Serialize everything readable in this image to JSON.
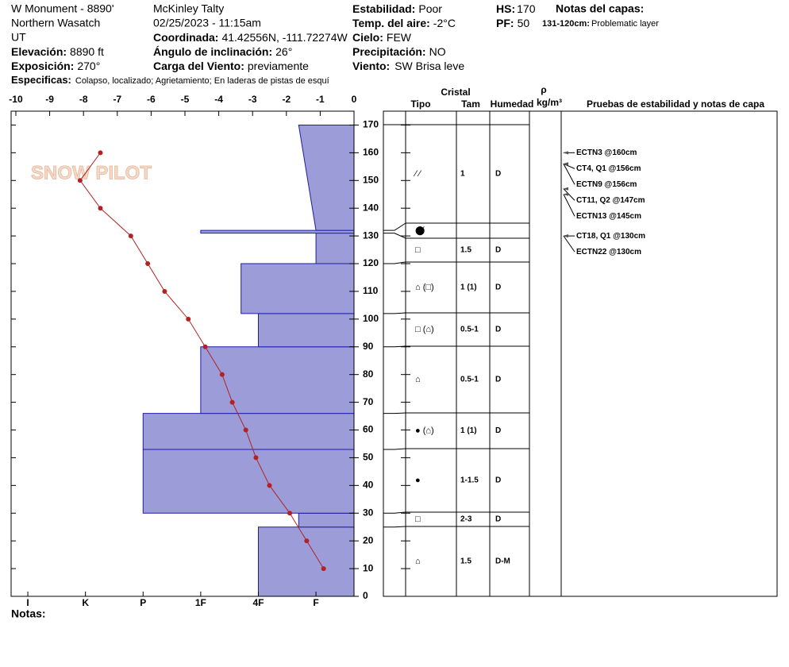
{
  "header": {
    "site": "W Monument - 8890'",
    "range": "Northern Wasatch",
    "state": "UT",
    "elevation": {
      "label": "Elevación:",
      "value": "8890 ft"
    },
    "aspect": {
      "label": "Exposición:",
      "value": "270°"
    },
    "observer": "McKinley Talty",
    "datetime": "02/25/2023 - 11:15am",
    "coordinates": {
      "label": "Coordinada:",
      "value": "41.42556N, -111.72274W"
    },
    "slope": {
      "label": "Ángulo de inclinación:",
      "value": "26°"
    },
    "wind_loading": {
      "label": "Carga del Viento:",
      "value": "previamente"
    },
    "stability": {
      "label": "Estabilidad:",
      "value": "Poor"
    },
    "air_temp": {
      "label": "Temp. del aire:",
      "value": "-2°C"
    },
    "sky": {
      "label": "Cielo:",
      "value": "FEW"
    },
    "precipitation": {
      "label": "Precipitación:",
      "value": "NO"
    },
    "wind": {
      "label": "Viento:",
      "value": "SW Brisa leve"
    },
    "hs": {
      "label": "HS:",
      "value": "170"
    },
    "pf": {
      "label": "PF:",
      "value": "50"
    },
    "layer_notes_title": "Notas del capas:",
    "layer_note": {
      "label": "131-120cm:",
      "value": "Problematic layer"
    },
    "specifics": {
      "label": "Especificas:",
      "value": "Colapso, localizado;  Agrietamiento;  En laderas de pistas de esquí"
    },
    "notes": "Notas:",
    "logo": "SNOW PILOT"
  },
  "chart_data": [
    {
      "type": "line",
      "color": "#b22222",
      "depths": [
        160,
        150,
        140,
        130,
        120,
        110,
        100,
        90,
        80,
        70,
        60,
        50,
        40,
        30,
        20,
        10
      ],
      "values": [
        -7.5,
        -8.1,
        -7.5,
        -6.6,
        -6.1,
        -5.6,
        -4.9,
        -4.4,
        -3.9,
        -3.6,
        -3.2,
        -2.9,
        -2.5,
        -1.9,
        -1.4,
        -0.9
      ],
      "xlim": [
        -10.14,
        0
      ],
      "xticks": [
        -10,
        -9,
        -8,
        -7,
        -6,
        -5,
        -4,
        -3,
        -2,
        -1,
        0
      ],
      "ylim": [
        0,
        175
      ],
      "yticks": [
        0,
        10,
        20,
        30,
        40,
        50,
        60,
        70,
        80,
        90,
        100,
        110,
        120,
        130,
        140,
        150,
        160,
        170
      ]
    },
    {
      "type": "bar",
      "color": "#9c9cd8",
      "edge_color": "#1c1ca8",
      "bottoms": [
        0,
        25,
        30,
        53,
        66,
        90,
        102,
        120,
        131,
        132
      ],
      "tops": [
        25,
        30,
        53,
        66,
        90,
        102,
        120,
        131,
        132,
        170
      ],
      "values": [
        2,
        1.3,
        4,
        4,
        3,
        2,
        2.3,
        1,
        3,
        1
      ],
      "values_top": [
        2,
        1.3,
        4,
        4,
        3,
        2,
        2.3,
        1,
        3,
        1.3
      ],
      "xlim": [
        0.34,
        6.29
      ],
      "xticks": [
        {
          "value": 6,
          "label": "I"
        },
        {
          "value": 5,
          "label": "K"
        },
        {
          "value": 4,
          "label": "P"
        },
        {
          "value": 3,
          "label": "1F"
        },
        {
          "value": 2,
          "label": "4F"
        },
        {
          "value": 1,
          "label": "F"
        }
      ]
    }
  ],
  "table": {
    "headers": {
      "crystal": "Cristal",
      "type": "Tipo",
      "size": "Tam",
      "moisture": "Humedad",
      "rho": "ρ",
      "density_unit": "kg/m³",
      "tests": "Pruebas de estabilidad y notas de capa"
    },
    "rows": [
      {
        "type": "⁄ ⁄",
        "size": "1",
        "moisture": "D"
      },
      {
        "type": "⬤̸",
        "size": "",
        "moisture": ""
      },
      {
        "type": "□",
        "size": "1.5",
        "moisture": "D"
      },
      {
        "type": "⌂ (□)",
        "size": "1 (1)",
        "moisture": "D"
      },
      {
        "type": "□ (⌂)",
        "size": "0.5-1",
        "moisture": "D"
      },
      {
        "type": "⌂",
        "size": "0.5-1",
        "moisture": "D"
      },
      {
        "type": "● (⌂)",
        "size": "1 (1)",
        "moisture": "D"
      },
      {
        "type": "●",
        "size": "1-1.5",
        "moisture": "D"
      },
      {
        "type": "□",
        "size": "2-3",
        "moisture": "D"
      },
      {
        "type": "⌂",
        "size": "1.5",
        "moisture": "D-M"
      }
    ]
  },
  "tests": [
    {
      "label": "ECTN3 @160cm",
      "depth": 160
    },
    {
      "label": "CT4, Q1 @156cm",
      "depth": 156
    },
    {
      "label": "ECTN9 @156cm",
      "depth": 156
    },
    {
      "label": "CT11, Q2 @147cm",
      "depth": 147
    },
    {
      "label": "ECTN13 @145cm",
      "depth": 145
    },
    {
      "label": "CT18, Q1 @130cm",
      "depth": 130
    },
    {
      "label": "ECTN22 @130cm",
      "depth": 130
    }
  ]
}
